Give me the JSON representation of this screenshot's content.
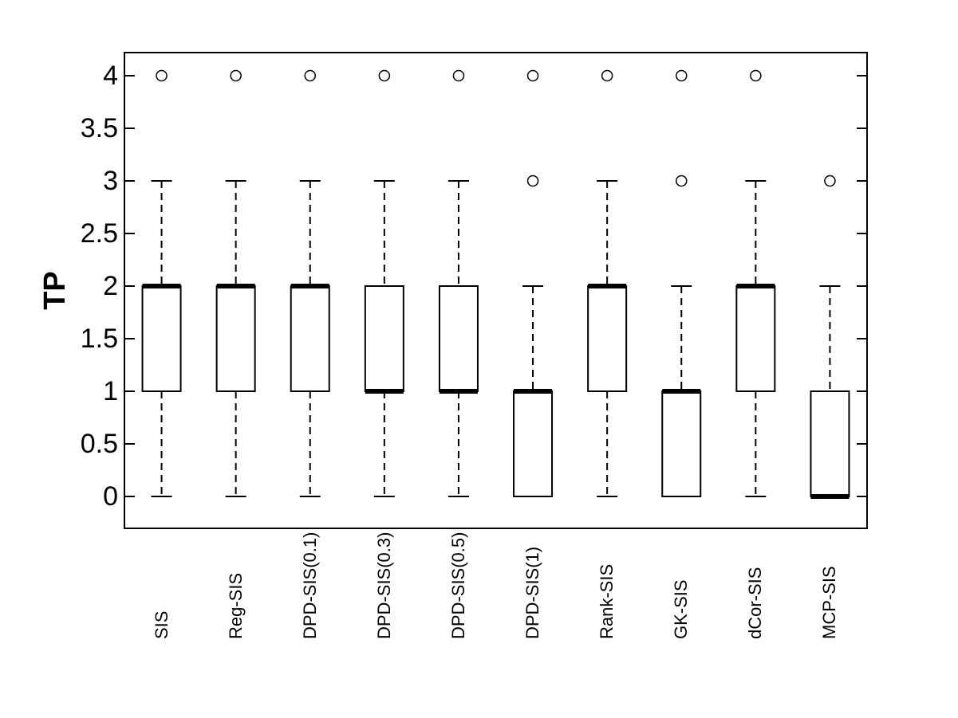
{
  "chart_data": {
    "type": "boxplot",
    "title": "",
    "xlabel": "",
    "ylabel": "TP",
    "ylim": [
      -0.35,
      4.22
    ],
    "grid": false,
    "legend": "none",
    "yticks": [
      0,
      0.5,
      1,
      1.5,
      2,
      2.5,
      3,
      3.5,
      4
    ],
    "ytick_labels": [
      "0",
      "0.5",
      "1",
      "1.5",
      "2",
      "2.5",
      "3",
      "3.5",
      "4"
    ],
    "categories": [
      "SIS",
      "Reg-SIS",
      "DPD-SIS(0.1)",
      "DPD-SIS(0.3)",
      "DPD-SIS(0.5)",
      "DPD-SIS(1)",
      "Rank-SIS",
      "GK-SIS",
      "dCor-SIS",
      "MCP-SIS"
    ],
    "series": [
      {
        "label": "SIS",
        "q1": 1,
        "median": 2,
        "q3": 2,
        "whisker_low": 0,
        "whisker_high": 3,
        "outliers": [
          4
        ]
      },
      {
        "label": "Reg-SIS",
        "q1": 1,
        "median": 2,
        "q3": 2,
        "whisker_low": 0,
        "whisker_high": 3,
        "outliers": [
          4
        ]
      },
      {
        "label": "DPD-SIS(0.1)",
        "q1": 1,
        "median": 2,
        "q3": 2,
        "whisker_low": 0,
        "whisker_high": 3,
        "outliers": [
          4
        ]
      },
      {
        "label": "DPD-SIS(0.3)",
        "q1": 1,
        "median": 1,
        "q3": 2,
        "whisker_low": 0,
        "whisker_high": 3,
        "outliers": [
          4
        ]
      },
      {
        "label": "DPD-SIS(0.5)",
        "q1": 1,
        "median": 1,
        "q3": 2,
        "whisker_low": 0,
        "whisker_high": 3,
        "outliers": [
          4
        ]
      },
      {
        "label": "DPD-SIS(1)",
        "q1": 0,
        "median": 1,
        "q3": 1,
        "whisker_low": 0,
        "whisker_high": 2,
        "outliers": [
          3,
          4
        ]
      },
      {
        "label": "Rank-SIS",
        "q1": 1,
        "median": 2,
        "q3": 2,
        "whisker_low": 0,
        "whisker_high": 3,
        "outliers": [
          4
        ]
      },
      {
        "label": "GK-SIS",
        "q1": 0,
        "median": 1,
        "q3": 1,
        "whisker_low": 0,
        "whisker_high": 2,
        "outliers": [
          3,
          4
        ]
      },
      {
        "label": "dCor-SIS",
        "q1": 1,
        "median": 2,
        "q3": 2,
        "whisker_low": 0,
        "whisker_high": 3,
        "outliers": [
          4
        ]
      },
      {
        "label": "MCP-SIS",
        "q1": 0,
        "median": 0,
        "q3": 1,
        "whisker_low": 0,
        "whisker_high": 2,
        "outliers": [
          3
        ]
      }
    ],
    "style": {
      "line_color": "#000000",
      "background": "#ffffff",
      "box_fill": "#ffffff",
      "whisker_line": "dashed"
    }
  }
}
